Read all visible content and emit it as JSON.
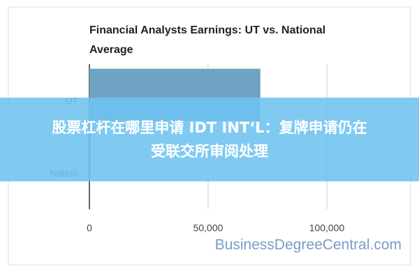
{
  "chart_data": {
    "type": "barh",
    "title": "Financial Analysts Earnings: UT vs. National Average",
    "categories": [
      "UT",
      "Nation"
    ],
    "values": [
      72000,
      null
    ],
    "color": "#6fa3c4",
    "xlim": [
      0,
      130000
    ],
    "xticks": [
      0,
      {
        "value": 50000,
        "label": "50,000"
      },
      {
        "value": 100000,
        "label": "100,000"
      }
    ],
    "grid": true,
    "watermark": "BusinessDegreeCentral.com"
  },
  "banner": {
    "lines": [
      "股票杠杆在哪里申请 IDT INT‘L：复牌申请仍在",
      "受联交所审阅处理"
    ]
  }
}
